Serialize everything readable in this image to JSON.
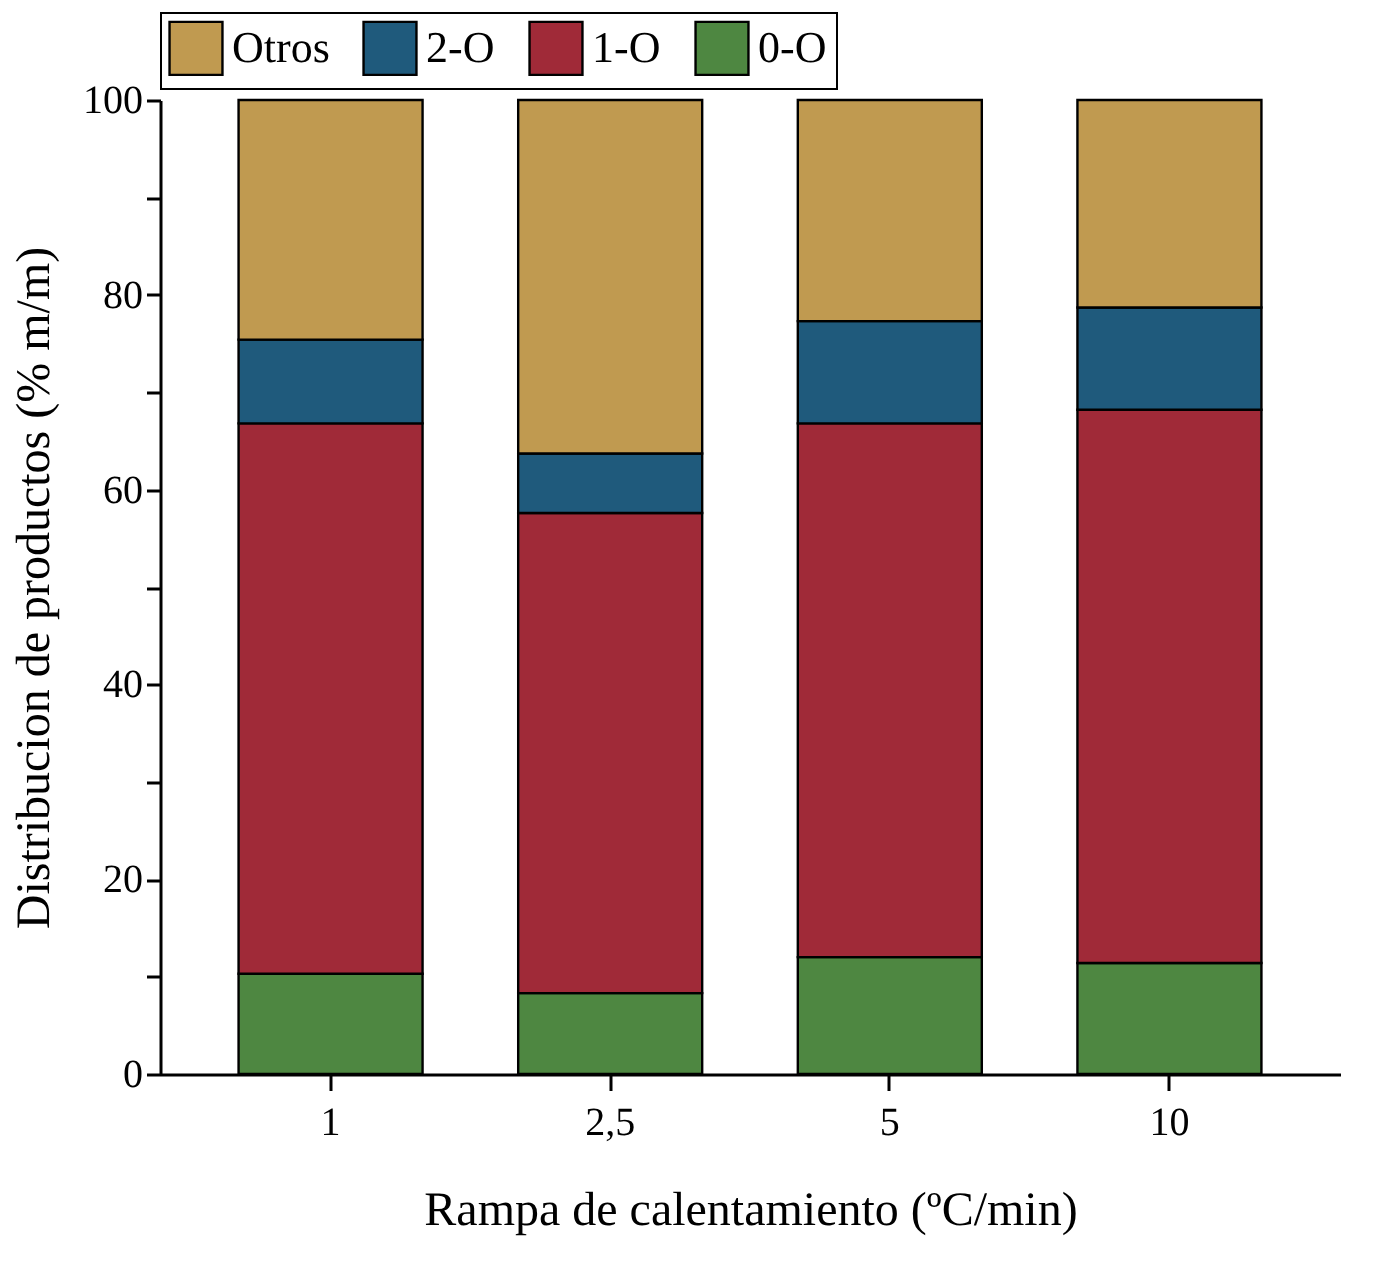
{
  "chart_data": {
    "type": "bar",
    "stacked": true,
    "xlabel": "Rampa de calentamiento (ºC/min)",
    "ylabel": "Distribucion de productos (% m/m)",
    "categories": [
      "1",
      "2,5",
      "5",
      "10"
    ],
    "series": [
      {
        "name": "0-O",
        "color": "#4e8741",
        "values": [
          10.3,
          8.3,
          12.0,
          11.4
        ]
      },
      {
        "name": "1-O",
        "color": "#a02a38",
        "values": [
          56.5,
          49.3,
          54.8,
          56.8
        ]
      },
      {
        "name": "2-O",
        "color": "#1f5a7c",
        "values": [
          8.6,
          6.1,
          10.5,
          10.5
        ]
      },
      {
        "name": "Otros",
        "color": "#c09a50",
        "values": [
          24.6,
          36.3,
          22.7,
          21.3
        ]
      }
    ],
    "ylim": [
      0,
      100
    ],
    "yticks": [
      0,
      {
        "value": 10,
        "label": null
      },
      20,
      {
        "value": 30,
        "label": null
      },
      40,
      {
        "value": 50,
        "label": null
      },
      60,
      {
        "value": 70,
        "label": null
      },
      80,
      {
        "value": 90,
        "label": null
      },
      100
    ],
    "grid": false,
    "legend": "top"
  }
}
